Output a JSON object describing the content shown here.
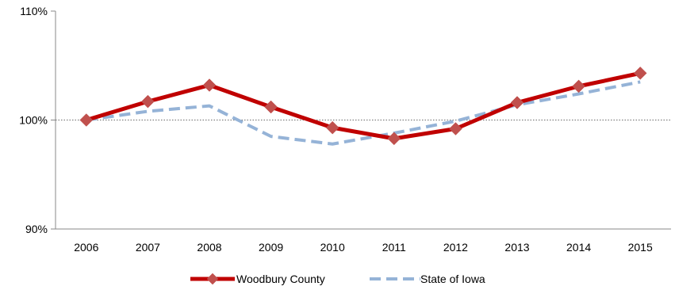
{
  "chart_data": {
    "type": "line",
    "title": "",
    "xlabel": "",
    "ylabel": "",
    "x": [
      "2006",
      "2007",
      "2008",
      "2009",
      "2010",
      "2011",
      "2012",
      "2013",
      "2014",
      "2015"
    ],
    "ylim": [
      90,
      110
    ],
    "yticks": [
      "90%",
      "100%",
      "110%"
    ],
    "yticks_values": [
      90,
      100,
      110
    ],
    "reference_line": 100,
    "grid": false,
    "legend_position": "bottom",
    "series": [
      {
        "name": "Woodbury County",
        "color": "#c00000",
        "marker_color": "#c0504d",
        "style": "solid",
        "marker": "diamond",
        "values": [
          100.0,
          101.7,
          103.2,
          101.2,
          99.3,
          98.3,
          99.2,
          101.6,
          103.1,
          104.3
        ]
      },
      {
        "name": "State of Iowa",
        "color": "#95b3d7",
        "style": "dashed",
        "marker": "none",
        "values": [
          100.0,
          100.8,
          101.3,
          98.5,
          97.8,
          98.8,
          99.9,
          101.4,
          102.4,
          103.5
        ]
      }
    ]
  }
}
